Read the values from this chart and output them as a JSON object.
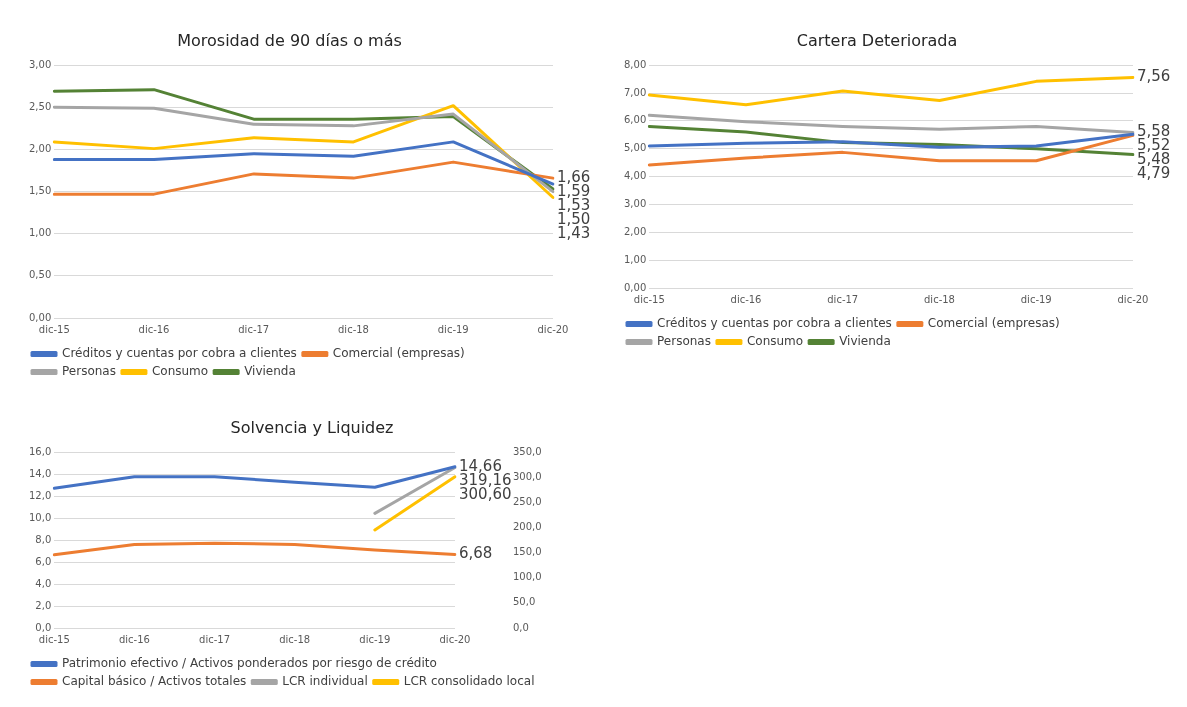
{
  "chart_data": [
    {
      "type": "line",
      "title": "Morosidad de 90 días o más",
      "categories": [
        "dic-15",
        "dic-16",
        "dic-17",
        "dic-18",
        "dic-19",
        "dic-20"
      ],
      "ylim": [
        0,
        3
      ],
      "yticks": [
        {
          "value": 0,
          "label": "0,00"
        },
        {
          "value": 0.5,
          "label": "0,50"
        },
        {
          "value": 1,
          "label": "1,00"
        },
        {
          "value": 1.5,
          "label": "1,50"
        },
        {
          "value": 2,
          "label": "2,00"
        },
        {
          "value": 2.5,
          "label": "2,50"
        },
        {
          "value": 3,
          "label": "3,00"
        }
      ],
      "grid": "y",
      "legend": "bottom",
      "marker": "none",
      "line_style": "solid",
      "series": [
        {
          "name": "Créditos y cuentas por cobra a clientes",
          "color": "#4472c4",
          "values": [
            1.88,
            1.88,
            1.95,
            1.92,
            2.09,
            1.59
          ],
          "value_labels": [
            null,
            null,
            null,
            null,
            null,
            "1,59"
          ]
        },
        {
          "name": "Comercial (empresas)",
          "color": "#ed7d31",
          "values": [
            1.47,
            1.47,
            1.71,
            1.66,
            1.85,
            1.66
          ],
          "value_labels": [
            null,
            null,
            null,
            null,
            null,
            "1,66"
          ]
        },
        {
          "name": "Personas",
          "color": "#a5a5a5",
          "values": [
            2.5,
            2.49,
            2.3,
            2.28,
            2.42,
            1.5
          ],
          "value_labels": [
            null,
            null,
            null,
            null,
            null,
            "1,50"
          ]
        },
        {
          "name": "Consumo",
          "color": "#ffc000",
          "values": [
            2.09,
            2.01,
            2.14,
            2.09,
            2.52,
            1.43
          ],
          "value_labels": [
            null,
            null,
            null,
            null,
            null,
            "1,43"
          ]
        },
        {
          "name": "Vivienda",
          "color": "#548235",
          "values": [
            2.69,
            2.71,
            2.36,
            2.36,
            2.39,
            1.53
          ],
          "value_labels": [
            null,
            null,
            null,
            null,
            null,
            "1,53"
          ]
        }
      ]
    },
    {
      "type": "line",
      "title": "Cartera Deteriorada",
      "categories": [
        "dic-15",
        "dic-16",
        "dic-17",
        "dic-18",
        "dic-19",
        "dic-20"
      ],
      "ylim": [
        0,
        8
      ],
      "yticks": [
        {
          "value": 0,
          "label": "0,00"
        },
        {
          "value": 1,
          "label": "1,00"
        },
        {
          "value": 2,
          "label": "2,00"
        },
        {
          "value": 3,
          "label": "3,00"
        },
        {
          "value": 4,
          "label": "4,00"
        },
        {
          "value": 5,
          "label": "5,00"
        },
        {
          "value": 6,
          "label": "6,00"
        },
        {
          "value": 7,
          "label": "7,00"
        },
        {
          "value": 8,
          "label": "8,00"
        }
      ],
      "grid": "y",
      "legend": "bottom",
      "marker": "none",
      "line_style": "solid",
      "series": [
        {
          "name": "Créditos y cuentas por cobra a clientes",
          "color": "#4472c4",
          "values": [
            5.1,
            5.2,
            5.25,
            5.05,
            5.1,
            5.52
          ],
          "value_labels": [
            null,
            null,
            null,
            null,
            null,
            "5,52"
          ]
        },
        {
          "name": "Comercial (empresas)",
          "color": "#ed7d31",
          "values": [
            4.42,
            4.67,
            4.87,
            4.57,
            4.57,
            5.48
          ],
          "value_labels": [
            null,
            null,
            null,
            null,
            null,
            "5,48"
          ]
        },
        {
          "name": "Personas",
          "color": "#a5a5a5",
          "values": [
            6.2,
            5.97,
            5.8,
            5.7,
            5.8,
            5.58
          ],
          "value_labels": [
            null,
            null,
            null,
            null,
            null,
            "5,58"
          ]
        },
        {
          "name": "Consumo",
          "color": "#ffc000",
          "values": [
            6.93,
            6.58,
            7.07,
            6.73,
            7.42,
            7.56
          ],
          "value_labels": [
            null,
            null,
            null,
            null,
            null,
            "7,56"
          ]
        },
        {
          "name": "Vivienda",
          "color": "#548235",
          "values": [
            5.8,
            5.6,
            5.22,
            5.15,
            5.0,
            4.79
          ],
          "value_labels": [
            null,
            null,
            null,
            null,
            null,
            "4,79"
          ]
        }
      ]
    },
    {
      "type": "line",
      "title": "Solvencia y Liquidez",
      "categories": [
        "dic-15",
        "dic-16",
        "dic-17",
        "dic-18",
        "dic-19",
        "dic-20"
      ],
      "ylim": [
        0,
        16
      ],
      "yticks": [
        {
          "value": 0,
          "label": "0,0"
        },
        {
          "value": 2,
          "label": "2,0"
        },
        {
          "value": 4,
          "label": "4,0"
        },
        {
          "value": 6,
          "label": "6,0"
        },
        {
          "value": 8,
          "label": "8,0"
        },
        {
          "value": 10,
          "label": "10,0"
        },
        {
          "value": 12,
          "label": "12,0"
        },
        {
          "value": 14,
          "label": "14,0"
        },
        {
          "value": 16,
          "label": "16,0"
        }
      ],
      "y2lim": [
        0,
        350
      ],
      "y2ticks": [
        {
          "value": 0,
          "label": "0,0"
        },
        {
          "value": 50,
          "label": "50,0"
        },
        {
          "value": 100,
          "label": "100,0"
        },
        {
          "value": 150,
          "label": "150,0"
        },
        {
          "value": 200,
          "label": "200,0"
        },
        {
          "value": 250,
          "label": "250,0"
        },
        {
          "value": 300,
          "label": "300,0"
        },
        {
          "value": 350,
          "label": "350,0"
        }
      ],
      "grid": "y",
      "legend": "bottom",
      "marker": "none",
      "line_style": "solid",
      "series": [
        {
          "name": "Patrimonio efectivo / Activos ponderados por riesgo de crédito",
          "color": "#4472c4",
          "values": [
            12.7,
            13.75,
            13.75,
            13.25,
            12.8,
            14.66
          ],
          "value_labels": [
            null,
            null,
            null,
            null,
            null,
            "14,66"
          ]
        },
        {
          "name": "Capital básico / Activos totales",
          "color": "#ed7d31",
          "values": [
            6.65,
            7.6,
            7.7,
            7.6,
            7.1,
            6.68
          ],
          "value_labels": [
            null,
            null,
            null,
            null,
            null,
            "6,68"
          ]
        },
        {
          "name": "LCR individual",
          "color": "#a5a5a5",
          "axis": "y2",
          "values": [
            null,
            null,
            null,
            null,
            228,
            319.16
          ],
          "value_labels": [
            null,
            null,
            null,
            null,
            null,
            "319,16"
          ]
        },
        {
          "name": "LCR consolidado local",
          "color": "#ffc000",
          "axis": "y2",
          "values": [
            null,
            null,
            null,
            null,
            195,
            300.6
          ],
          "value_labels": [
            null,
            null,
            null,
            null,
            null,
            "300,60"
          ]
        }
      ]
    }
  ]
}
